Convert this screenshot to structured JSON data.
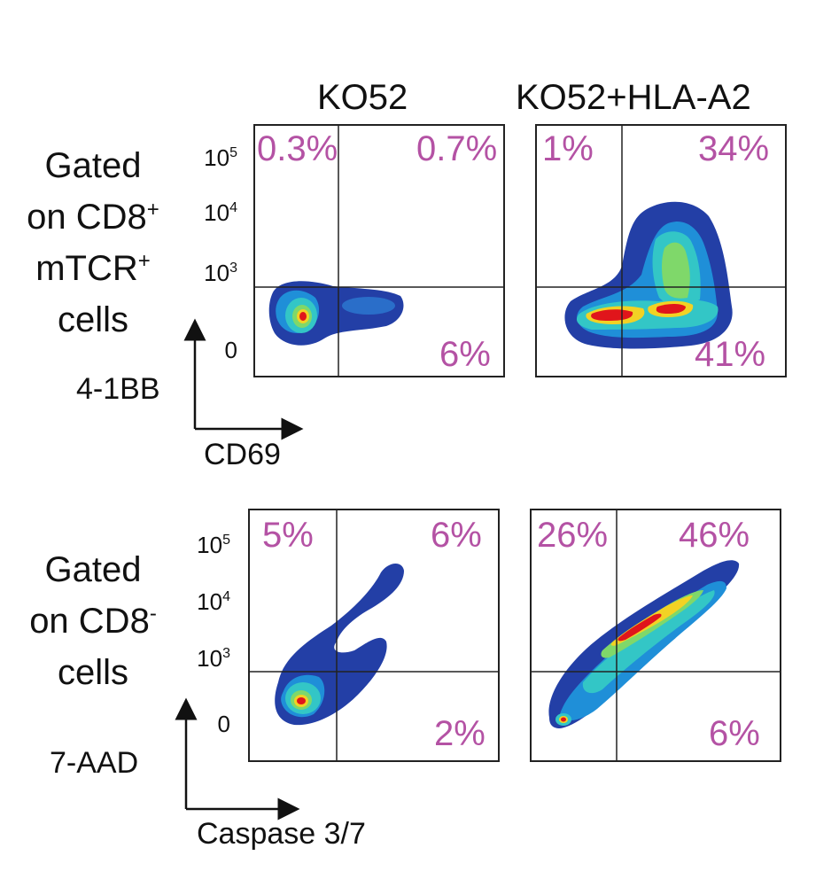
{
  "columns": [
    "KO52",
    "KO52+HLA-A2"
  ],
  "rows": [
    {
      "label_parts": [
        "Gated",
        "on CD8",
        "mTCR",
        "cells"
      ],
      "label_sups": [
        "",
        "+",
        "+",
        ""
      ],
      "ylabel": "4-1BB",
      "xlabel": "CD69"
    },
    {
      "label_parts": [
        "Gated",
        "on CD8",
        "cells"
      ],
      "label_sups": [
        "",
        "-",
        ""
      ],
      "ylabel": "7-AAD",
      "xlabel": "Caspase 3/7"
    }
  ],
  "chart_data": [
    {
      "type": "heatmap",
      "plot": "flow-cytometry-density",
      "row": 0,
      "column": "KO52",
      "xlabel": "CD69",
      "ylabel": "4-1BB",
      "yticks": [
        {
          "base": "10",
          "exp": "5"
        },
        {
          "base": "10",
          "exp": "4"
        },
        {
          "base": "10",
          "exp": "3"
        },
        {
          "base": "0",
          "exp": ""
        }
      ],
      "quadrants": {
        "upper_left": "0.3%",
        "upper_right": "0.7%",
        "lower_right": "6%"
      }
    },
    {
      "type": "heatmap",
      "plot": "flow-cytometry-density",
      "row": 0,
      "column": "KO52+HLA-A2",
      "xlabel": "CD69",
      "ylabel": "4-1BB",
      "quadrants": {
        "upper_left": "1%",
        "upper_right": "34%",
        "lower_right": "41%"
      }
    },
    {
      "type": "heatmap",
      "plot": "flow-cytometry-density",
      "row": 1,
      "column": "KO52",
      "xlabel": "Caspase 3/7",
      "ylabel": "7-AAD",
      "yticks": [
        {
          "base": "10",
          "exp": "5"
        },
        {
          "base": "10",
          "exp": "4"
        },
        {
          "base": "10",
          "exp": "3"
        },
        {
          "base": "0",
          "exp": ""
        }
      ],
      "quadrants": {
        "upper_left": "5%",
        "upper_right": "6%",
        "lower_right": "2%"
      }
    },
    {
      "type": "heatmap",
      "plot": "flow-cytometry-density",
      "row": 1,
      "column": "KO52+HLA-A2",
      "xlabel": "Caspase 3/7",
      "ylabel": "7-AAD",
      "quadrants": {
        "upper_left": "26%",
        "upper_right": "46%",
        "lower_right": "6%"
      }
    }
  ],
  "colors": {
    "percent_text": "#b452a4",
    "density_low": "#1f3fa8",
    "density_mid": "#6fd06a",
    "density_high": "#e0151b"
  }
}
